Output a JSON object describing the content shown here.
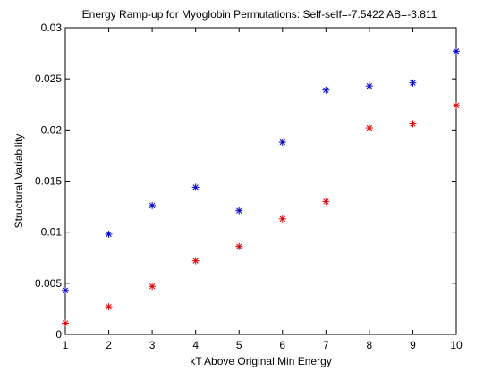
{
  "chart_data": {
    "type": "scatter",
    "title": "Energy Ramp-up for Myoglobin Permutations:  Self-self=-7.5422 AB=-3.811",
    "xlabel": "kT Above Original Min Energy",
    "ylabel": "Structural Variability",
    "xlim": [
      1,
      10
    ],
    "ylim": [
      0,
      0.03
    ],
    "xticks": [
      "1",
      "2",
      "3",
      "4",
      "5",
      "6",
      "7",
      "8",
      "9",
      "10"
    ],
    "yticks": [
      "0",
      "0.005",
      "0.01",
      "0.015",
      "0.02",
      "0.025",
      "0.03"
    ],
    "grid": false,
    "legend": "none",
    "marker": "asterisk",
    "series": [
      {
        "color": "#0000cc",
        "x": [
          1,
          2,
          3,
          4,
          5,
          6,
          7,
          8,
          9,
          10
        ],
        "y": [
          0.0043,
          0.0098,
          0.0126,
          0.0144,
          0.0121,
          0.0188,
          0.0239,
          0.0243,
          0.0246,
          0.0277
        ]
      },
      {
        "color": "#dd0000",
        "x": [
          1,
          2,
          3,
          4,
          5,
          6,
          7,
          8,
          9,
          10
        ],
        "y": [
          0.0011,
          0.0027,
          0.0047,
          0.0072,
          0.0086,
          0.0113,
          0.013,
          0.0202,
          0.0206,
          0.0224
        ]
      }
    ]
  }
}
